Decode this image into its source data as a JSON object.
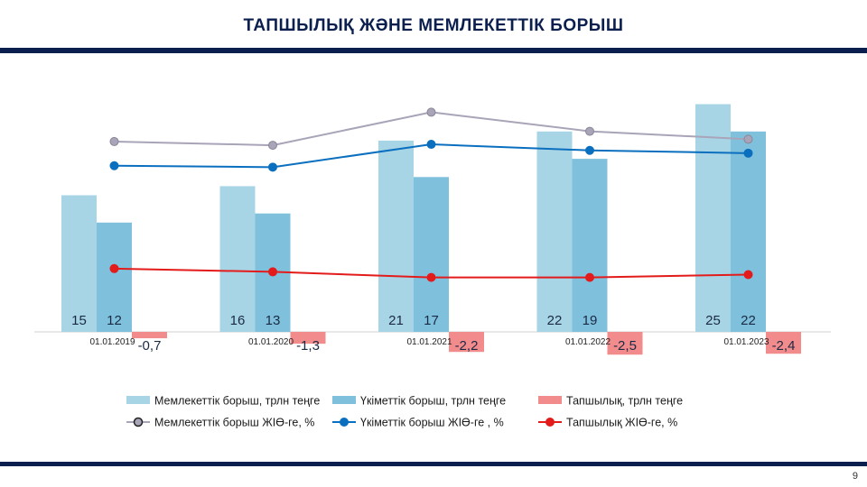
{
  "slide": {
    "title": "ТАПШЫЛЫҚ ЖӘНЕ МЕМЛЕКЕТТІК БОРЫШ",
    "page_number": "9"
  },
  "colors": {
    "state_debt_bar": "#a8d5e6",
    "gov_debt_bar": "#7fc1dc",
    "deficit_bar": "#f28b8b",
    "state_debt_line": "#a9a4b8",
    "gov_debt_line": "#0b6fbf",
    "deficit_line": "#e31b1b",
    "navy": "#0b1f4f"
  },
  "chart_data": {
    "type": "bar+line",
    "categories": [
      "01.01.2019",
      "01.01.2020",
      "01.01.2021",
      "01.01.2022",
      "01.01.2023"
    ],
    "series": [
      {
        "name": "Мемлекеттік  борыш,  трлн  теңге",
        "type": "bar",
        "values": [
          15,
          16,
          21,
          22,
          25
        ],
        "labels": [
          "15",
          "16",
          "21",
          "22",
          "25"
        ]
      },
      {
        "name": "Үкіметтік  борыш,  трлн  теңге",
        "type": "bar",
        "values": [
          12,
          13,
          17,
          19,
          22
        ],
        "labels": [
          "12",
          "13",
          "17",
          "19",
          "22"
        ]
      },
      {
        "name": "Тапшылық,  трлн  теңге",
        "type": "bar",
        "values": [
          -0.7,
          -1.3,
          -2.2,
          -2.5,
          -2.4
        ],
        "labels": [
          "-0,7",
          "-1,3",
          "-2,2",
          "-2,5",
          "-2,4"
        ]
      },
      {
        "name": "Мемлекеттік  борыш  ЖІӨ-ге,  %",
        "type": "line",
        "values": [
          25.4,
          24.6,
          31.7,
          27.6,
          25.9
        ]
      },
      {
        "name": "Үкіметтік  борыш  ЖІӨ-ге  , %",
        "type": "line",
        "values": [
          20.2,
          19.9,
          24.8,
          23.5,
          22.9
        ]
      },
      {
        "name": "Тапшылық  ЖІӨ-ге,  %",
        "type": "line",
        "values": [
          -1.9,
          -2.6,
          -3.8,
          -3.8,
          -3.2
        ]
      }
    ],
    "legend_position": "bottom",
    "grid": false
  }
}
